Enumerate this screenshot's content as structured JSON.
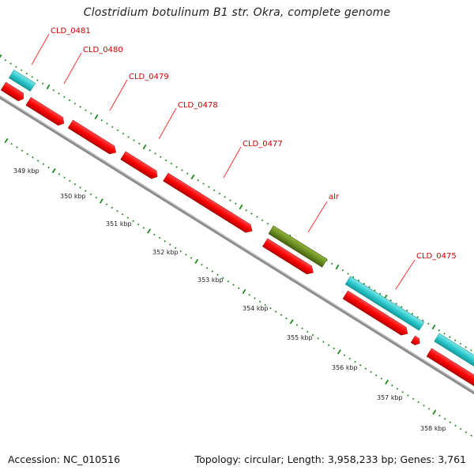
{
  "title": "Clostridium botulinum B1 str. Okra, complete genome",
  "footer": {
    "accession": "Accession: NC_010516",
    "summary": "Topology: circular; Length: 3,958,233 bp; Genes: 3,761"
  },
  "colors": {
    "cds": "#ff0000",
    "gene": "#33cccc",
    "rna": "#6b8e23",
    "backbone": "#8c8c8c",
    "ticks": "#1f8a1f",
    "labels": "#cc0000"
  },
  "scale_ticks": [
    "349 kbp",
    "350 kbp",
    "351 kbp",
    "352 kbp",
    "353 kbp",
    "354 kbp",
    "355 kbp",
    "356 kbp",
    "357 kbp",
    "358 kbp"
  ],
  "gene_labels": [
    "CLD_0481",
    "CLD_0480",
    "CLD_0479",
    "CLD_0478",
    "CLD_0477",
    "alr",
    "CLD_0475"
  ]
}
